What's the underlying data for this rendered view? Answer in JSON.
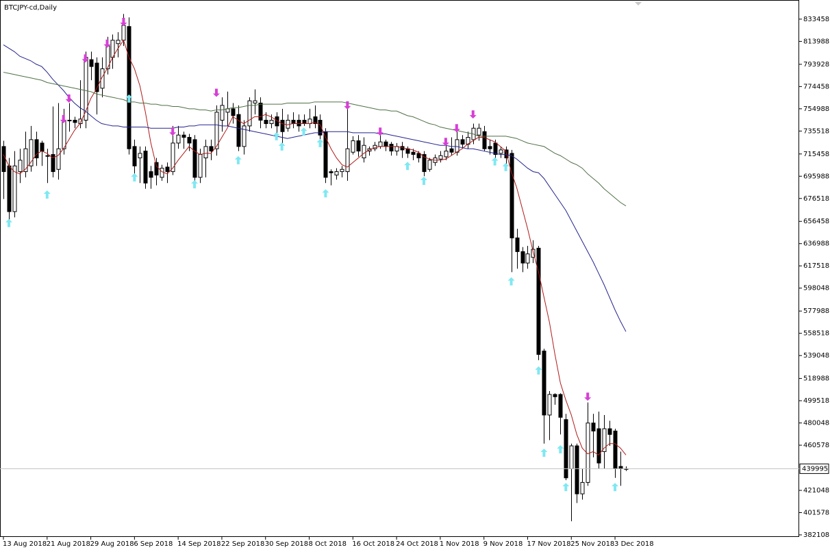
{
  "chart_data": {
    "type": "candlestick",
    "title": "BTCJPY-cd,Daily",
    "categories": [
      "13 Aug 2018",
      null,
      null,
      null,
      null,
      null,
      null,
      null,
      "21 Aug 2018",
      null,
      null,
      null,
      null,
      null,
      null,
      null,
      "29 Aug 2018",
      null,
      null,
      null,
      null,
      null,
      null,
      null,
      "6 Sep 2018",
      null,
      null,
      null,
      null,
      null,
      null,
      null,
      "14 Sep 2018",
      null,
      null,
      null,
      null,
      null,
      null,
      null,
      "22 Sep 2018",
      null,
      null,
      null,
      null,
      null,
      null,
      null,
      "30 Sep 2018",
      null,
      null,
      null,
      null,
      null,
      null,
      null,
      "8 Oct 2018",
      null,
      null,
      null,
      null,
      null,
      null,
      null,
      "16 Oct 2018",
      null,
      null,
      null,
      null,
      null,
      null,
      null,
      "24 Oct 2018",
      null,
      null,
      null,
      null,
      null,
      null,
      null,
      "1 Nov 2018",
      null,
      null,
      null,
      null,
      null,
      null,
      null,
      "9 Nov 2018",
      null,
      null,
      null,
      null,
      null,
      null,
      null,
      "17 Nov 2018",
      null,
      null,
      null,
      null,
      null,
      null,
      null,
      "25 Nov 2018",
      null,
      null,
      null,
      null,
      null,
      null,
      null,
      "3 Dec 2018",
      null,
      null
    ],
    "open": [
      722000,
      705000,
      665000,
      700000,
      700000,
      705000,
      728000,
      725000,
      714000,
      715000,
      702000,
      720000,
      745000,
      745000,
      742000,
      745000,
      798000,
      795000,
      773000,
      790000,
      800000,
      812000,
      815000,
      827000,
      722000,
      712000,
      718000,
      700000,
      708000,
      695000,
      704000,
      700000,
      725000,
      732000,
      730000,
      728000,
      695000,
      712000,
      722000,
      720000,
      745000,
      752000,
      755000,
      750000,
      722000,
      740000,
      760000,
      760000,
      745000,
      742000,
      748000,
      745000,
      738000,
      745000,
      745000,
      745000,
      742000,
      748000,
      745000,
      735000,
      700000,
      697000,
      700000,
      700000,
      717000,
      727000,
      712000,
      718000,
      720000,
      722000,
      726000,
      724000,
      718000,
      722000,
      720000,
      717000,
      716000,
      715000,
      702000,
      708000,
      711000,
      713000,
      720000,
      717000,
      728000,
      724000,
      728000,
      732000,
      735000,
      722000,
      725000,
      716000,
      719000,
      716000,
      642000,
      630000,
      620000,
      625000,
      633000,
      543000,
      487000,
      505000,
      505000,
      483000,
      440000,
      460000,
      418000,
      428000,
      480000,
      475000,
      455000,
      475000,
      473000,
      442000,
      440000
    ],
    "high": [
      727000,
      712000,
      718000,
      720000,
      735000,
      740000,
      735000,
      727000,
      720000,
      757000,
      760000,
      755000,
      760000,
      748000,
      780000,
      805000,
      805000,
      800000,
      800000,
      818000,
      820000,
      822000,
      838000,
      835000,
      728000,
      722000,
      722000,
      705000,
      712000,
      706000,
      708000,
      740000,
      740000,
      735000,
      733000,
      732000,
      720000,
      728000,
      728000,
      758000,
      765000,
      770000,
      760000,
      758000,
      745000,
      765000,
      772000,
      765000,
      752000,
      750000,
      752000,
      755000,
      750000,
      752000,
      750000,
      750000,
      755000,
      758000,
      750000,
      738000,
      702000,
      703000,
      705000,
      755000,
      731000,
      732000,
      730000,
      722000,
      726000,
      732000,
      728000,
      726000,
      725000,
      726000,
      722000,
      720000,
      718000,
      718000,
      712000,
      715000,
      718000,
      724000,
      730000,
      738000,
      732000,
      735000,
      742000,
      742000,
      740000,
      728000,
      728000,
      722000,
      722000,
      719000,
      650000,
      634000,
      635000,
      640000,
      635000,
      545000,
      508000,
      506000,
      506000,
      488000,
      462000,
      462000,
      440000,
      498000,
      488000,
      490000,
      487000,
      482000,
      475000,
      455000,
      442000
    ],
    "low": [
      676000,
      655000,
      660000,
      690000,
      695000,
      700000,
      705000,
      705000,
      690000,
      695000,
      693000,
      715000,
      735000,
      738000,
      738000,
      738000,
      780000,
      750000,
      765000,
      785000,
      790000,
      800000,
      810000,
      715000,
      695000,
      690000,
      685000,
      685000,
      688000,
      692000,
      690000,
      697000,
      720000,
      720000,
      718000,
      690000,
      690000,
      695000,
      710000,
      714000,
      735000,
      740000,
      742000,
      718000,
      715000,
      735000,
      750000,
      738000,
      738000,
      738000,
      732000,
      725000,
      735000,
      738000,
      735000,
      740000,
      738000,
      738000,
      728000,
      690000,
      688000,
      693000,
      695000,
      692000,
      715000,
      713000,
      708000,
      714000,
      718000,
      720000,
      718000,
      714000,
      714000,
      712000,
      712000,
      710000,
      708000,
      696000,
      700000,
      705000,
      708000,
      710000,
      714000,
      714000,
      720000,
      720000,
      724000,
      727000,
      718000,
      715000,
      712000,
      712000,
      705000,
      612000,
      615000,
      612000,
      615000,
      620000,
      535000,
      462000,
      465000,
      496000,
      470000,
      430000,
      394000,
      410000,
      413000,
      425000,
      450000,
      440000,
      440000,
      460000,
      432000,
      425000,
      438000
    ],
    "close": [
      700000,
      665000,
      705000,
      710000,
      720000,
      728000,
      712000,
      718000,
      714000,
      700000,
      720000,
      745000,
      745000,
      743000,
      746000,
      800000,
      792000,
      770000,
      790000,
      810000,
      815000,
      815000,
      828000,
      720000,
      705000,
      716000,
      690000,
      695000,
      697000,
      703000,
      700000,
      725000,
      732000,
      730000,
      725000,
      695000,
      715000,
      722000,
      718000,
      752000,
      758000,
      755000,
      749000,
      722000,
      740000,
      762000,
      762000,
      745000,
      742000,
      745000,
      740000,
      735000,
      745000,
      742000,
      740000,
      742000,
      746000,
      742000,
      732000,
      695000,
      699000,
      700000,
      702000,
      720000,
      727000,
      718000,
      723000,
      720000,
      723000,
      726000,
      722000,
      718000,
      722000,
      719000,
      716000,
      715000,
      712000,
      700000,
      710000,
      712000,
      714000,
      718000,
      717000,
      728000,
      724000,
      730000,
      738000,
      738000,
      720000,
      720000,
      715000,
      719000,
      712000,
      642000,
      630000,
      620000,
      628000,
      632000,
      540000,
      487000,
      505000,
      503000,
      485000,
      432000,
      460000,
      418000,
      428000,
      480000,
      473000,
      445000,
      475000,
      470000,
      440000,
      440000,
      439995
    ],
    "up_color": "#ffffff",
    "down_color": "#000000",
    "moving_averages": [
      {
        "color": "#b01818",
        "values": [
          715000,
          705000,
          700000,
          698000,
          702000,
          708000,
          715000,
          718000,
          716000,
          712000,
          714000,
          720000,
          728000,
          736000,
          742000,
          752000,
          764000,
          772000,
          782000,
          790000,
          800000,
          808000,
          815000,
          800000,
          790000,
          775000,
          752000,
          725000,
          705000,
          700000,
          698000,
          703000,
          710000,
          716000,
          722000,
          718000,
          715000,
          716000,
          716000,
          722000,
          730000,
          738000,
          748000,
          745000,
          742000,
          745000,
          748000,
          748000,
          750000,
          748000,
          745000,
          742000,
          741000,
          742000,
          742000,
          742000,
          742000,
          743000,
          741000,
          730000,
          720000,
          712000,
          706000,
          704000,
          708000,
          712000,
          716000,
          719000,
          721000,
          722000,
          722000,
          722000,
          722000,
          721000,
          720000,
          719000,
          717000,
          713000,
          711000,
          710000,
          710000,
          711000,
          714000,
          717000,
          720000,
          724000,
          727000,
          730000,
          730000,
          728000,
          726000,
          722000,
          718000,
          700000,
          686000,
          668000,
          650000,
          630000,
          612000,
          590000,
          568000,
          540000,
          515000,
          500000,
          487000,
          470000,
          458000,
          453000,
          455000,
          452000,
          458000,
          462000,
          462000,
          458000,
          452000
        ]
      },
      {
        "color": "#23238f",
        "values": [
          811000,
          808000,
          805000,
          801000,
          799000,
          797000,
          794000,
          792000,
          787000,
          781000,
          776000,
          771000,
          765000,
          760000,
          756000,
          753000,
          749000,
          745000,
          742000,
          741000,
          740000,
          740000,
          739000,
          739000,
          739000,
          739000,
          739000,
          738000,
          738000,
          738000,
          738000,
          738000,
          739000,
          739000,
          740000,
          740000,
          741000,
          741000,
          741000,
          741000,
          740000,
          740000,
          739000,
          738000,
          737000,
          736000,
          735000,
          734000,
          733000,
          732000,
          731000,
          730000,
          729000,
          730000,
          731000,
          732000,
          733000,
          734000,
          734000,
          735000,
          735000,
          735000,
          735000,
          735000,
          734000,
          734000,
          734000,
          734000,
          734000,
          733000,
          733000,
          732000,
          731000,
          730000,
          729000,
          728000,
          727000,
          726000,
          725000,
          724000,
          723000,
          723000,
          722000,
          722000,
          721000,
          720000,
          720000,
          719000,
          718000,
          717000,
          716000,
          715000,
          715000,
          714000,
          711000,
          707000,
          703000,
          700000,
          699000,
          694000,
          687000,
          680000,
          673000,
          666000,
          657000,
          648000,
          639000,
          630000,
          621000,
          611000,
          601000,
          590000,
          579000,
          569000,
          560000
        ]
      },
      {
        "color": "#4f6f45",
        "values": [
          787000,
          786000,
          785000,
          784000,
          783000,
          782000,
          781000,
          780000,
          778000,
          777000,
          776000,
          775000,
          774000,
          773000,
          772000,
          771000,
          770000,
          768000,
          767000,
          766000,
          765000,
          764000,
          763000,
          761000,
          761000,
          760000,
          760000,
          759000,
          759000,
          758000,
          758000,
          757000,
          757000,
          756000,
          755000,
          755000,
          754000,
          754000,
          753000,
          754000,
          754000,
          755000,
          756000,
          756000,
          757000,
          758000,
          758000,
          759000,
          759000,
          759000,
          759000,
          759000,
          760000,
          760000,
          760000,
          760000,
          760000,
          761000,
          761000,
          761000,
          761000,
          761000,
          761000,
          760000,
          759000,
          758000,
          757000,
          756000,
          755000,
          754000,
          754000,
          753000,
          753000,
          751000,
          749000,
          748000,
          746000,
          744000,
          742000,
          741000,
          739000,
          738000,
          737000,
          736000,
          735000,
          734000,
          733000,
          731000,
          731000,
          731000,
          731000,
          731000,
          731000,
          730000,
          729000,
          727000,
          725000,
          724000,
          723000,
          722000,
          719000,
          716000,
          714000,
          711000,
          708000,
          706000,
          703000,
          698000,
          694000,
          690000,
          685000,
          681000,
          677000,
          673000,
          670000
        ]
      }
    ],
    "up_arrows": {
      "color": "#7fe8f2",
      "values": [
        null,
        655000,
        null,
        null,
        null,
        null,
        null,
        null,
        680000,
        null,
        null,
        null,
        null,
        null,
        null,
        null,
        null,
        null,
        null,
        null,
        null,
        null,
        null,
        764000,
        695000,
        null,
        null,
        null,
        null,
        null,
        null,
        null,
        null,
        null,
        null,
        689000,
        null,
        null,
        null,
        null,
        null,
        null,
        null,
        710000,
        null,
        null,
        null,
        null,
        null,
        null,
        731000,
        722000,
        null,
        null,
        null,
        735000,
        null,
        null,
        725000,
        681000,
        null,
        null,
        null,
        null,
        null,
        null,
        null,
        null,
        null,
        null,
        null,
        null,
        null,
        null,
        705000,
        null,
        null,
        692000,
        null,
        null,
        null,
        null,
        null,
        null,
        null,
        null,
        null,
        null,
        null,
        null,
        709000,
        null,
        704000,
        604000,
        null,
        null,
        null,
        null,
        526000,
        454000,
        null,
        null,
        457000,
        424000,
        null,
        null,
        null,
        null,
        null,
        null,
        null,
        null,
        424000,
        null,
        null
      ]
    },
    "down_arrows": {
      "color": "#d63fd6",
      "values": [
        null,
        null,
        null,
        null,
        null,
        null,
        null,
        null,
        null,
        null,
        null,
        746000,
        764000,
        null,
        null,
        799000,
        null,
        null,
        null,
        812000,
        null,
        null,
        831000,
        null,
        null,
        null,
        null,
        null,
        null,
        null,
        null,
        735000,
        null,
        null,
        null,
        null,
        null,
        null,
        null,
        769000,
        null,
        null,
        null,
        null,
        null,
        null,
        null,
        null,
        null,
        null,
        null,
        null,
        null,
        null,
        null,
        null,
        null,
        null,
        null,
        null,
        null,
        null,
        null,
        758000,
        null,
        null,
        null,
        null,
        null,
        735000,
        null,
        null,
        null,
        null,
        null,
        null,
        null,
        null,
        null,
        null,
        null,
        726000,
        null,
        738000,
        null,
        null,
        750000,
        null,
        null,
        null,
        null,
        null,
        null,
        null,
        null,
        null,
        null,
        null,
        null,
        null,
        null,
        null,
        null,
        null,
        null,
        null,
        null,
        503000,
        null,
        null,
        null,
        null,
        null,
        null,
        null
      ]
    },
    "ylim": [
      380300,
      849000
    ],
    "yticks": [
      833458,
      813988,
      793928,
      774458,
      754988,
      735518,
      715458,
      695988,
      676518,
      656458,
      636988,
      617518,
      598048,
      577988,
      558518,
      539048,
      518988,
      499518,
      480048,
      460578,
      421048,
      401578,
      382108
    ],
    "grid": false
  }
}
